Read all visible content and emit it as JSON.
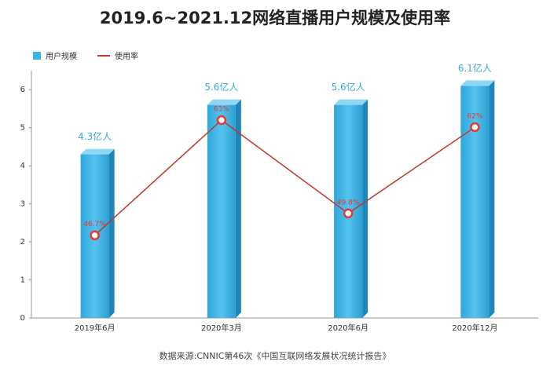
{
  "chart_data": {
    "type": "bar_line",
    "title": "2019.6~2021.12网络直播用户规模及使用率",
    "categories": [
      "2019年6月",
      "2020年3月",
      "2020年6月",
      "2020年12月"
    ],
    "series": [
      {
        "name": "用户规模",
        "type": "bar",
        "color": "#3bb4e4",
        "values": [
          4.3,
          5.6,
          5.6,
          6.1
        ],
        "value_labels": [
          "4.3亿人",
          "5.6亿人",
          "5.6亿人",
          "6.1亿人"
        ]
      },
      {
        "name": "使用率",
        "type": "line",
        "axis": "y2",
        "color": "#c0392b",
        "values": [
          46.7,
          63,
          49.8,
          62
        ],
        "value_labels": [
          "46.7%",
          "63%",
          "49.8%",
          "62%"
        ]
      }
    ],
    "ylim": [
      0,
      6.5
    ],
    "yticks": [
      0,
      1,
      2,
      3,
      4,
      5,
      6
    ],
    "y2lim": [
      35,
      70
    ],
    "legend": "top-left",
    "source": "数据来源:CNNIC第46次《中国互联网络发展状况统计报告》"
  }
}
